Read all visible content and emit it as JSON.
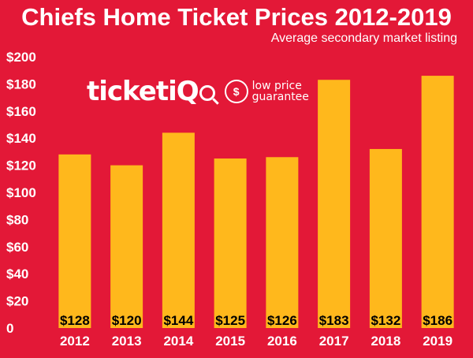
{
  "header": {
    "title": "Chiefs Home Ticket Prices 2012-2019",
    "subtitle": "Average secondary market listing"
  },
  "logo": {
    "brand": "ticketiQ",
    "brand_main": "ticketi",
    "brand_q": "Q",
    "badge_icon": "shield-dollar-icon",
    "tagline_line1": "low price",
    "tagline_line2": "guarantee"
  },
  "colors": {
    "background": "#E31837",
    "bar": "#FFB81C",
    "text": "#FFFFFF",
    "label": "#000000"
  },
  "chart_data": {
    "type": "bar",
    "title": "Chiefs Home Ticket Prices 2012-2019",
    "subtitle": "Average secondary market listing",
    "xlabel": "",
    "ylabel": "",
    "categories": [
      "2012",
      "2013",
      "2014",
      "2015",
      "2016",
      "2017",
      "2018",
      "2019"
    ],
    "values": [
      128,
      120,
      144,
      125,
      126,
      183,
      132,
      186
    ],
    "data_labels": [
      "$128",
      "$120",
      "$144",
      "$125",
      "$126",
      "$183",
      "$132",
      "$186"
    ],
    "ylim": [
      0,
      200
    ],
    "yticks": [
      0,
      20,
      40,
      60,
      80,
      100,
      120,
      140,
      160,
      180,
      200
    ],
    "ytick_labels": [
      "0",
      "$20",
      "$40",
      "$60",
      "$80",
      "$100",
      "$120",
      "$140",
      "$160",
      "$180",
      "$200"
    ],
    "grid": false,
    "legend": "none"
  }
}
